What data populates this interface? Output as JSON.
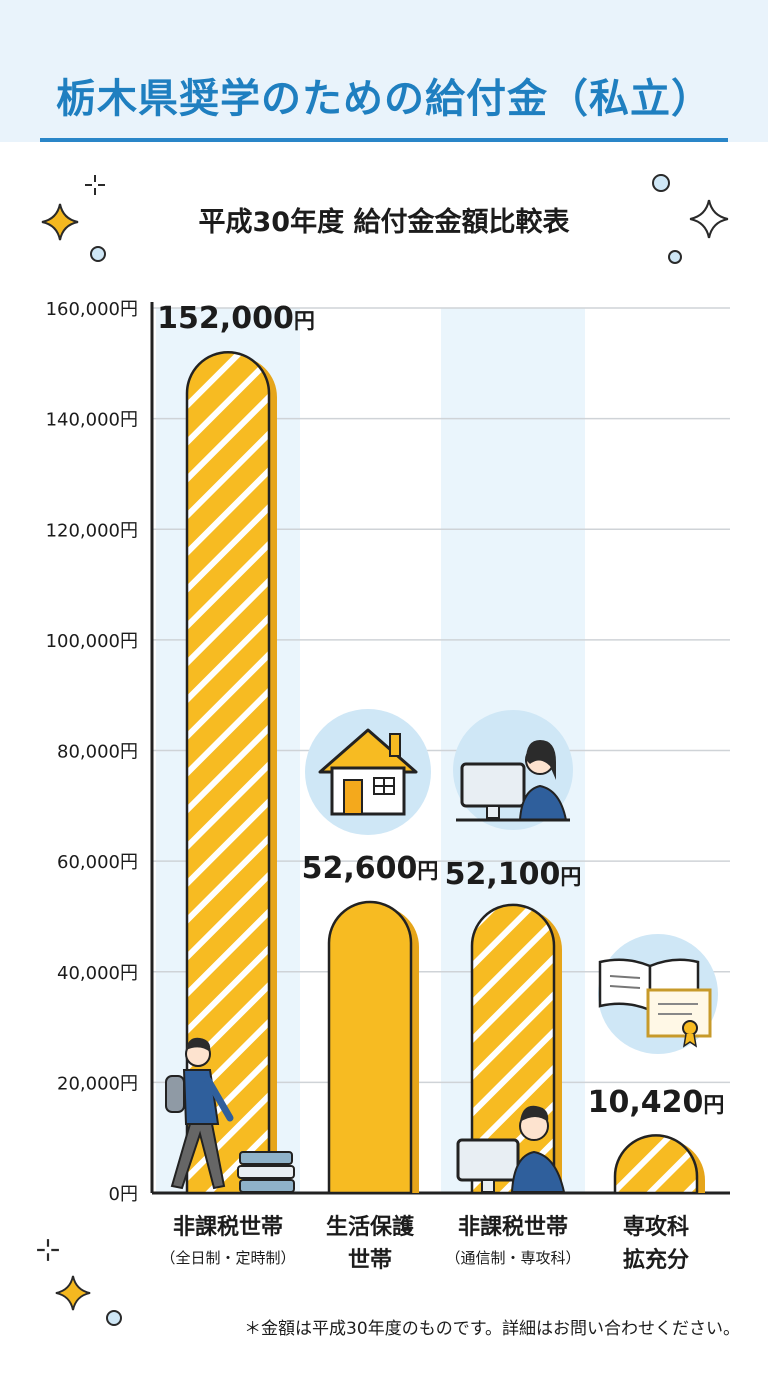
{
  "page": {
    "title": "栃木県奨学のための給付金（私立）",
    "subtitle": "平成30年度 給付金金額比較表",
    "footnote": "＊金額は平成30年度のものです。詳細はお問い合わせください。"
  },
  "icons": [
    "sparkle-icon",
    "sparkle-outline-icon",
    "small-circle-icon",
    "student-walking-icon",
    "books-icon",
    "house-icon",
    "person-at-computer-icon",
    "open-book-icon",
    "certificate-icon"
  ],
  "colors": {
    "bar": "#f7bb22",
    "bar_outline": "#222222",
    "title": "#1f7fc0",
    "highlight_column": "#eaf5fc",
    "icon_bg": "#cfe7f6"
  },
  "chart_data": {
    "type": "bar",
    "title": "平成30年度 給付金金額比較表",
    "xlabel": "",
    "ylabel": "",
    "ylim": [
      0,
      160000
    ],
    "yticks": [
      0,
      20000,
      40000,
      60000,
      80000,
      100000,
      120000,
      140000,
      160000
    ],
    "ytick_labels": [
      "0円",
      "20,000円",
      "40,000円",
      "60,000円",
      "80,000円",
      "100,000円",
      "120,000円",
      "140,000円",
      "160,000円"
    ],
    "grid": true,
    "categories": [
      {
        "line1": "非課税世帯",
        "line2": "（全日制・定時制）"
      },
      {
        "line1": "生活保護",
        "line2": "世帯"
      },
      {
        "line1": "非課税世帯",
        "line2": "（通信制・専攻科）"
      },
      {
        "line1": "専攻科",
        "line2": "拡充分"
      }
    ],
    "values": [
      152000,
      52600,
      52100,
      10420
    ],
    "value_labels": [
      {
        "num": "152,000",
        "unit": "円"
      },
      {
        "num": "52,600",
        "unit": "円"
      },
      {
        "num": "52,100",
        "unit": "円"
      },
      {
        "num": "10,420",
        "unit": "円"
      }
    ],
    "striped": [
      true,
      false,
      true,
      true
    ],
    "highlighted_columns": [
      0,
      2
    ]
  }
}
